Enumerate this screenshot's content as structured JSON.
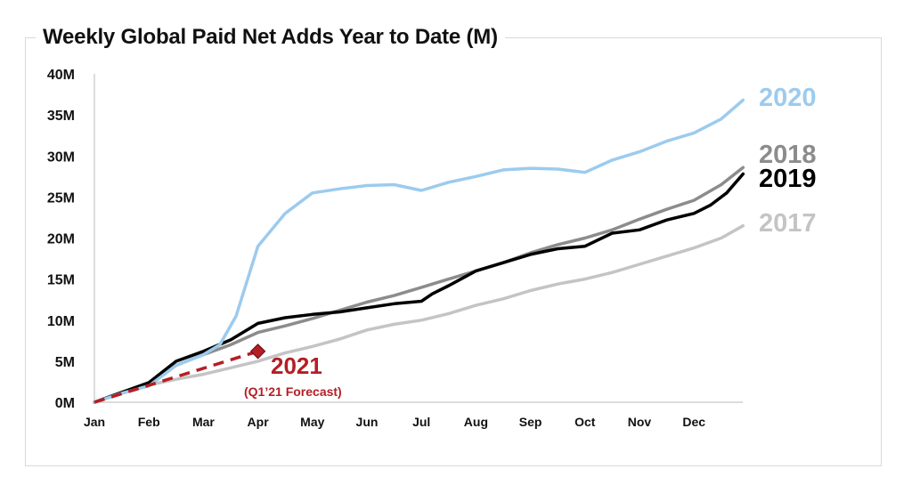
{
  "chart_data": {
    "type": "line",
    "title": "Weekly Global Paid Net Adds Year to Date (M)",
    "xlabel": "",
    "ylabel": "",
    "x_ticks": [
      "Jan",
      "Feb",
      "Mar",
      "Apr",
      "May",
      "Jun",
      "Jul",
      "Aug",
      "Sep",
      "Oct",
      "Nov",
      "Dec"
    ],
    "y_ticks": [
      "0M",
      "5M",
      "10M",
      "15M",
      "20M",
      "25M",
      "30M",
      "35M",
      "40M"
    ],
    "xlim": [
      0,
      11.9
    ],
    "ylim": [
      0,
      40
    ],
    "grid": false,
    "series": [
      {
        "name": "2017",
        "color": "#c4c4c4",
        "x": [
          0,
          0.5,
          1,
          1.5,
          2,
          2.5,
          3,
          3.5,
          4,
          4.5,
          5,
          5.5,
          6,
          6.5,
          7,
          7.5,
          8,
          8.5,
          9,
          9.5,
          10,
          10.5,
          11,
          11.5,
          11.9
        ],
        "y": [
          0,
          1.1,
          2.1,
          2.8,
          3.4,
          4.2,
          5.0,
          6.0,
          6.8,
          7.7,
          8.8,
          9.5,
          10.0,
          10.8,
          11.8,
          12.6,
          13.6,
          14.4,
          15.0,
          15.8,
          16.8,
          17.8,
          18.8,
          20.0,
          21.5
        ]
      },
      {
        "name": "2018",
        "color": "#8c8c8c",
        "x": [
          0,
          0.5,
          1,
          1.5,
          2,
          2.5,
          3,
          3.5,
          4,
          4.5,
          5,
          5.5,
          6,
          6.5,
          7,
          7.5,
          8,
          8.5,
          9,
          9.5,
          10,
          10.5,
          11,
          11.5,
          11.9
        ],
        "y": [
          0,
          1.2,
          2.2,
          4.5,
          5.8,
          7.0,
          8.5,
          9.3,
          10.2,
          11.2,
          12.2,
          13.0,
          14.0,
          15.0,
          16.0,
          17.0,
          18.2,
          19.2,
          20.0,
          21.0,
          22.3,
          23.5,
          24.6,
          26.5,
          28.6
        ]
      },
      {
        "name": "2019",
        "color": "#000000",
        "x": [
          0,
          0.5,
          1,
          1.5,
          2,
          2.5,
          3,
          3.5,
          4,
          4.5,
          5,
          5.5,
          6,
          6.2,
          6.5,
          7,
          7.5,
          8,
          8.5,
          9,
          9.5,
          10,
          10.5,
          11,
          11.3,
          11.6,
          11.9
        ],
        "y": [
          0,
          1.2,
          2.4,
          5.0,
          6.2,
          7.6,
          9.6,
          10.3,
          10.7,
          11.0,
          11.5,
          12.0,
          12.3,
          13.2,
          14.2,
          16.0,
          17.0,
          18.0,
          18.7,
          19.0,
          20.6,
          21.0,
          22.2,
          23.0,
          24.0,
          25.5,
          27.8
        ]
      },
      {
        "name": "2020",
        "color": "#9ccbee",
        "x": [
          0,
          0.5,
          1,
          1.5,
          2,
          2.3,
          2.6,
          3,
          3.5,
          4,
          4.5,
          5,
          5.5,
          6,
          6.5,
          7,
          7.5,
          8,
          8.5,
          9,
          9.5,
          10,
          10.5,
          11,
          11.5,
          11.9
        ],
        "y": [
          0,
          1.1,
          2.0,
          4.5,
          5.8,
          7.0,
          10.5,
          19.0,
          23.0,
          25.5,
          26.0,
          26.4,
          26.5,
          25.8,
          26.8,
          27.5,
          28.3,
          28.5,
          28.4,
          28.0,
          29.5,
          30.5,
          31.8,
          32.8,
          34.5,
          36.8
        ]
      }
    ],
    "forecast": {
      "name": "2021",
      "note": "(Q1’21 Forecast)",
      "color": "#b41e25",
      "x": [
        0,
        3
      ],
      "y": [
        0,
        6.2
      ]
    },
    "labels": {
      "s2020": "2020",
      "s2018": "2018",
      "s2019": "2019",
      "s2017": "2017",
      "forecast_year": "2021",
      "forecast_note": "(Q1’21 Forecast)"
    }
  }
}
